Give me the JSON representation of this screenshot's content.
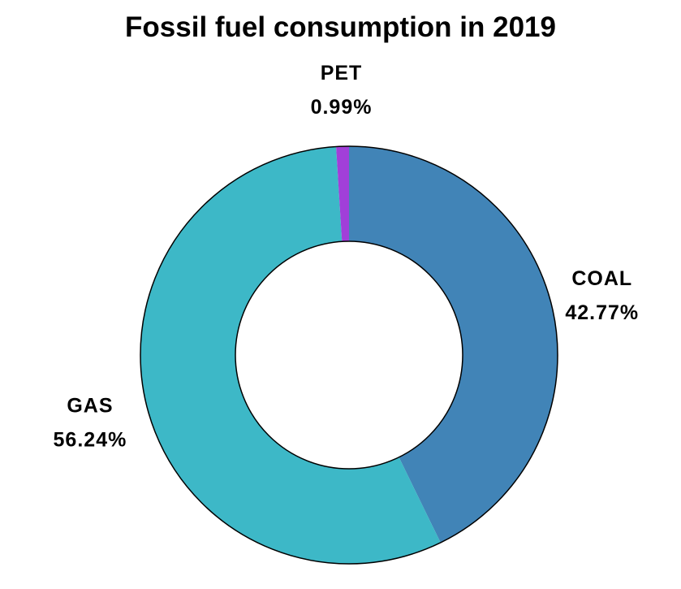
{
  "chart_data": {
    "type": "pie",
    "title": "Fossil fuel consumption in 2019",
    "donut": true,
    "legend": "none",
    "slices": [
      {
        "label": "COAL",
        "value": 42.77,
        "value_label": "42.77%",
        "color": "#4184b7"
      },
      {
        "label": "GAS",
        "value": 56.24,
        "value_label": "56.24%",
        "color": "#3db8c7"
      },
      {
        "label": "PET",
        "value": 0.99,
        "value_label": "0.99%",
        "color": "#a13fd9"
      }
    ]
  }
}
